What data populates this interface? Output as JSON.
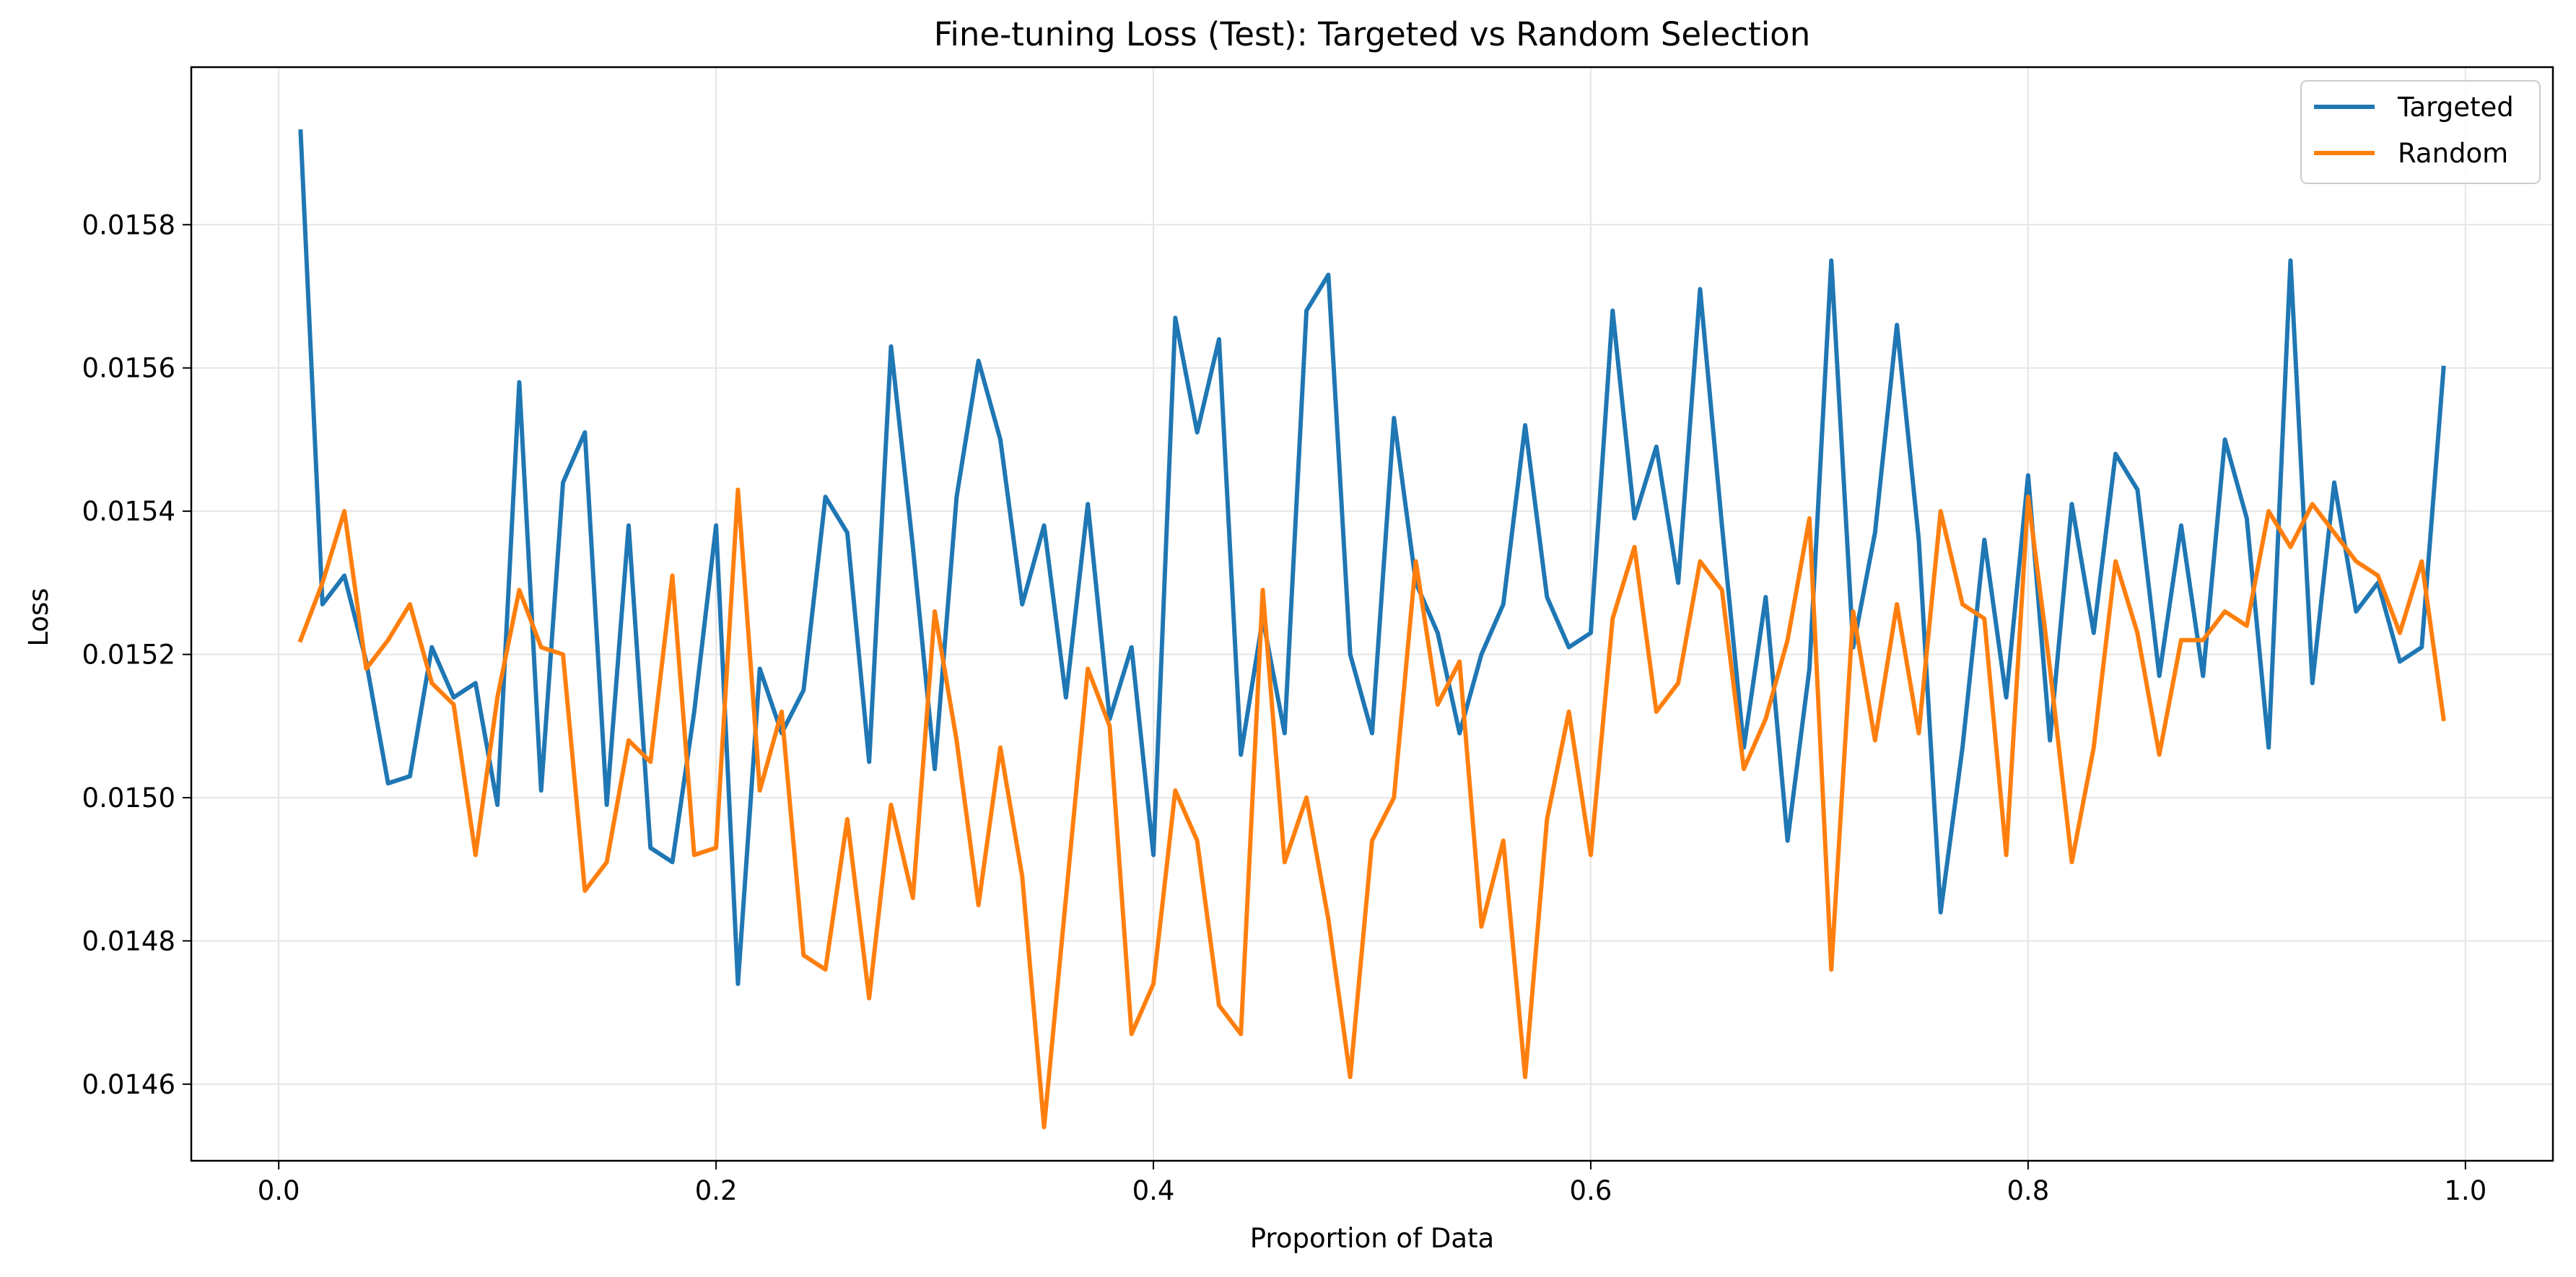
{
  "chart_data": {
    "type": "line",
    "title": "Fine-tuning Loss (Test): Targeted vs Random Selection",
    "xlabel": "Proportion of Data",
    "ylabel": "Loss",
    "xlim": [
      -0.04,
      1.04
    ],
    "ylim": [
      0.014493,
      0.01602
    ],
    "grid": true,
    "legend_position": "top-right",
    "x_ticks": [
      {
        "value": 0.0,
        "label": "0.0"
      },
      {
        "value": 0.2,
        "label": "0.2"
      },
      {
        "value": 0.4,
        "label": "0.4"
      },
      {
        "value": 0.6,
        "label": "0.6"
      },
      {
        "value": 0.8,
        "label": "0.8"
      },
      {
        "value": 1.0,
        "label": "1.0"
      }
    ],
    "y_ticks": [
      {
        "value": 0.0146,
        "label": "0.0146"
      },
      {
        "value": 0.0148,
        "label": "0.0148"
      },
      {
        "value": 0.015,
        "label": "0.0150"
      },
      {
        "value": 0.0152,
        "label": "0.0152"
      },
      {
        "value": 0.0154,
        "label": "0.0154"
      },
      {
        "value": 0.0156,
        "label": "0.0156"
      },
      {
        "value": 0.0158,
        "label": "0.0158"
      }
    ],
    "x": [
      0.01,
      0.02,
      0.03,
      0.04,
      0.05,
      0.06,
      0.07,
      0.08,
      0.09,
      0.1,
      0.11,
      0.12,
      0.13,
      0.14,
      0.15,
      0.16,
      0.17,
      0.18,
      0.19,
      0.2,
      0.21,
      0.22,
      0.23,
      0.24,
      0.25,
      0.26,
      0.27,
      0.28,
      0.29,
      0.3,
      0.31,
      0.32,
      0.33,
      0.34,
      0.35,
      0.36,
      0.37,
      0.38,
      0.39,
      0.4,
      0.41,
      0.42,
      0.43,
      0.44,
      0.45,
      0.46,
      0.47,
      0.48,
      0.49,
      0.5,
      0.51,
      0.52,
      0.53,
      0.54,
      0.55,
      0.56,
      0.57,
      0.58,
      0.59,
      0.6,
      0.61,
      0.62,
      0.63,
      0.64,
      0.65,
      0.66,
      0.67,
      0.68,
      0.69,
      0.7,
      0.71,
      0.72,
      0.73,
      0.74,
      0.75,
      0.76,
      0.77,
      0.78,
      0.79,
      0.8,
      0.81,
      0.82,
      0.83,
      0.84,
      0.85,
      0.86,
      0.87,
      0.88,
      0.89,
      0.9,
      0.91,
      0.92,
      0.93,
      0.94,
      0.95,
      0.96,
      0.97,
      0.98,
      0.99
    ],
    "series": [
      {
        "name": "Targeted",
        "color": "#1f77b4",
        "values": [
          0.01593,
          0.01527,
          0.01531,
          0.01519,
          0.01502,
          0.01503,
          0.01521,
          0.01514,
          0.01516,
          0.01499,
          0.01558,
          0.01501,
          0.01544,
          0.01551,
          0.01499,
          0.01538,
          0.01493,
          0.01491,
          0.01512,
          0.01538,
          0.01474,
          0.01518,
          0.01509,
          0.01515,
          0.01542,
          0.01537,
          0.01505,
          0.01563,
          0.01535,
          0.01504,
          0.01542,
          0.01561,
          0.0155,
          0.01527,
          0.01538,
          0.01514,
          0.01541,
          0.01511,
          0.01521,
          0.01492,
          0.01567,
          0.01551,
          0.01564,
          0.01506,
          0.01525,
          0.01509,
          0.01568,
          0.01573,
          0.0152,
          0.01509,
          0.01553,
          0.0153,
          0.01523,
          0.01509,
          0.0152,
          0.01527,
          0.01552,
          0.01528,
          0.01521,
          0.01523,
          0.01568,
          0.01539,
          0.01549,
          0.0153,
          0.01571,
          0.01538,
          0.01507,
          0.01528,
          0.01494,
          0.01518,
          0.01575,
          0.01521,
          0.01537,
          0.01566,
          0.01536,
          0.01484,
          0.01507,
          0.01536,
          0.01514,
          0.01545,
          0.01508,
          0.01541,
          0.01523,
          0.01548,
          0.01543,
          0.01517,
          0.01538,
          0.01517,
          0.0155,
          0.01539,
          0.01507,
          0.01575,
          0.01516,
          0.01544,
          0.01526,
          0.0153,
          0.01519,
          0.01521,
          0.0156
        ]
      },
      {
        "name": "Random",
        "color": "#ff7f0e",
        "values": [
          0.01522,
          0.0153,
          0.0154,
          0.01518,
          0.01522,
          0.01527,
          0.01516,
          0.01513,
          0.01492,
          0.01514,
          0.01529,
          0.01521,
          0.0152,
          0.01487,
          0.01491,
          0.01508,
          0.01505,
          0.01531,
          0.01492,
          0.01493,
          0.01543,
          0.01501,
          0.01512,
          0.01478,
          0.01476,
          0.01497,
          0.01472,
          0.01499,
          0.01486,
          0.01526,
          0.01508,
          0.01485,
          0.01507,
          0.01489,
          0.01454,
          0.01486,
          0.01518,
          0.0151,
          0.01467,
          0.01474,
          0.01501,
          0.01494,
          0.01471,
          0.01467,
          0.01529,
          0.01491,
          0.015,
          0.01483,
          0.01461,
          0.01494,
          0.015,
          0.01533,
          0.01513,
          0.01519,
          0.01482,
          0.01494,
          0.01461,
          0.01497,
          0.01512,
          0.01492,
          0.01525,
          0.01535,
          0.01512,
          0.01516,
          0.01533,
          0.01529,
          0.01504,
          0.01511,
          0.01522,
          0.01539,
          0.01476,
          0.01526,
          0.01508,
          0.01527,
          0.01509,
          0.0154,
          0.01527,
          0.01525,
          0.01492,
          0.01542,
          0.01518,
          0.01491,
          0.01507,
          0.01533,
          0.01523,
          0.01506,
          0.01522,
          0.01522,
          0.01526,
          0.01524,
          0.0154,
          0.01535,
          0.01541,
          0.01537,
          0.01533,
          0.01531,
          0.01523,
          0.01533,
          0.01511
        ]
      }
    ]
  }
}
